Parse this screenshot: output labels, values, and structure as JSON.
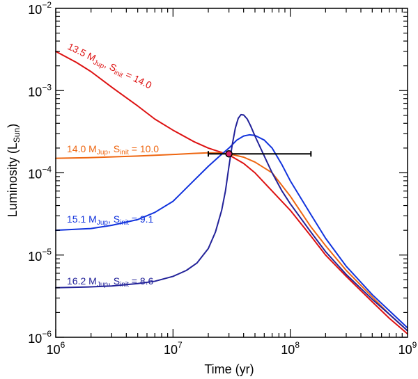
{
  "chart_data": {
    "type": "line",
    "xlabel": "Time (yr)",
    "ylabel": {
      "text": "Luminosity (L",
      "sub": "Sun",
      "close": ")"
    },
    "x_scale": "log",
    "y_scale": "log",
    "xlim": [
      1000000,
      1000000000
    ],
    "ylim": [
      1e-06,
      0.01
    ],
    "x_ticks": [
      {
        "value": 1000000,
        "base": "10",
        "exp": "6"
      },
      {
        "value": 10000000,
        "base": "10",
        "exp": "7"
      },
      {
        "value": 100000000,
        "base": "10",
        "exp": "8"
      },
      {
        "value": 1000000000,
        "base": "10",
        "exp": "9"
      }
    ],
    "y_ticks": [
      {
        "value": 1e-06,
        "base": "10",
        "exp": "−6"
      },
      {
        "value": 1e-05,
        "base": "10",
        "exp": "−5"
      },
      {
        "value": 0.0001,
        "base": "10",
        "exp": "−4"
      },
      {
        "value": 0.001,
        "base": "10",
        "exp": "−3"
      },
      {
        "value": 0.01,
        "base": "10",
        "exp": "−2"
      }
    ],
    "grid": false,
    "series": [
      {
        "id": "s13",
        "color": "#dd1111",
        "label": {
          "mass": "13.5 M",
          "mass_sub": "Jup",
          "sep": ", S",
          "s_sub": "init",
          "s_val": " = 14.0"
        },
        "x": [
          1000000,
          1500000,
          2000000,
          3000000,
          5000000,
          7000000,
          10000000,
          15000000,
          20000000,
          25000000,
          30000000,
          40000000,
          50000000,
          70000000,
          100000000,
          150000000,
          200000000,
          300000000,
          500000000,
          700000000,
          1000000000
        ],
        "y": [
          0.003,
          0.0022,
          0.0017,
          0.0011,
          0.00065,
          0.00045,
          0.00033,
          0.00024,
          0.0002,
          0.00018,
          0.000165,
          0.00013,
          0.0001,
          6e-05,
          3.5e-05,
          1.7e-05,
          1e-05,
          5.5e-06,
          2.7e-06,
          1.7e-06,
          1.1e-06
        ]
      },
      {
        "id": "s14",
        "color": "#ee6611",
        "label": {
          "mass": "14.0 M",
          "mass_sub": "Jup",
          "sep": ", S",
          "s_sub": "init",
          "s_val": " = 10.0"
        },
        "x": [
          1000000,
          2000000,
          5000000,
          10000000,
          15000000,
          20000000,
          25000000,
          30000000,
          40000000,
          50000000,
          70000000,
          100000000,
          150000000,
          200000000,
          300000000,
          500000000,
          700000000,
          1000000000
        ],
        "y": [
          0.00015,
          0.000153,
          0.00016,
          0.000167,
          0.000172,
          0.000175,
          0.000174,
          0.00017,
          0.000155,
          0.000135,
          0.0001,
          5.2e-05,
          2.2e-05,
          1.3e-05,
          6.5e-06,
          3.1e-06,
          1.9e-06,
          1.2e-06
        ]
      },
      {
        "id": "s15",
        "color": "#1133dd",
        "label": {
          "mass": "15.1 M",
          "mass_sub": "Jup",
          "sep": ", S",
          "s_sub": "init",
          "s_val": " = 9.1"
        },
        "x": [
          1000000,
          2000000,
          3000000,
          5000000,
          7000000,
          10000000,
          15000000,
          20000000,
          25000000,
          30000000,
          35000000,
          40000000,
          45000000,
          50000000,
          60000000,
          70000000,
          85000000,
          100000000,
          150000000,
          200000000,
          300000000,
          500000000,
          700000000,
          1000000000
        ],
        "y": [
          2e-05,
          2.1e-05,
          2.3e-05,
          2.7e-05,
          3.3e-05,
          4.5e-05,
          8e-05,
          0.00012,
          0.00016,
          0.0002,
          0.00025,
          0.00028,
          0.00029,
          0.000285,
          0.00025,
          0.0002,
          0.000125,
          8e-05,
          3.1e-05,
          1.6e-05,
          7.3e-06,
          3.3e-06,
          2.1e-06,
          1.3e-06
        ]
      },
      {
        "id": "s16",
        "color": "#222299",
        "label": {
          "mass": "16.2 M",
          "mass_sub": "Jup",
          "sep": ", S",
          "s_sub": "init",
          "s_val": " = 8.6"
        },
        "x": [
          1000000,
          2000000,
          3000000,
          5000000,
          7000000,
          10000000,
          13000000,
          16000000,
          20000000,
          23000000,
          26000000,
          28000000,
          30000000,
          32000000,
          34000000,
          36000000,
          38000000,
          40000000,
          43000000,
          46000000,
          50000000,
          60000000,
          70000000,
          85000000,
          100000000,
          150000000,
          200000000,
          300000000,
          500000000,
          700000000,
          1000000000
        ],
        "y": [
          4e-06,
          4.1e-06,
          4.2e-06,
          4.5e-06,
          4.8e-06,
          5.5e-06,
          6.5e-06,
          8e-06,
          1.2e-05,
          1.9e-05,
          3.5e-05,
          6e-05,
          0.00012,
          0.00022,
          0.00035,
          0.00046,
          0.00051,
          0.000505,
          0.00045,
          0.00037,
          0.00028,
          0.00016,
          0.0001,
          6e-05,
          4.2e-05,
          1.9e-05,
          1.1e-05,
          5.8e-06,
          2.9e-06,
          1.9e-06,
          1.2e-06
        ]
      }
    ],
    "marker": {
      "x": 30000000,
      "y": 0.00017,
      "xerr": [
        20000000,
        150000000
      ],
      "color": "#dd2266"
    }
  }
}
